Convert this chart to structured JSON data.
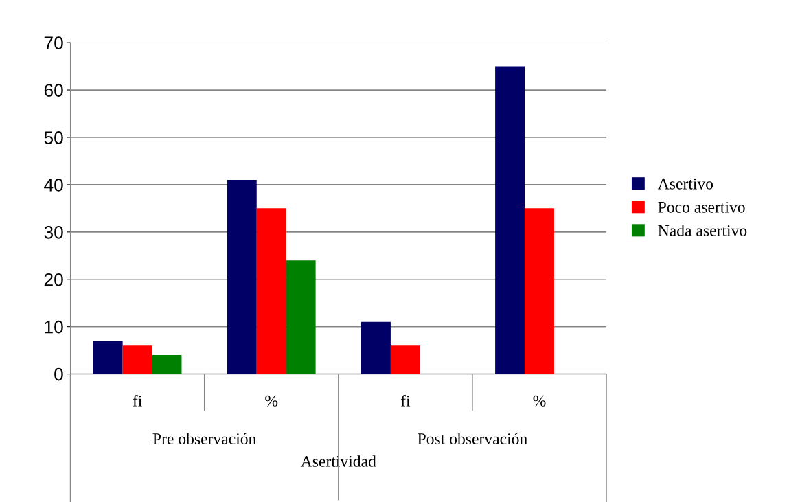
{
  "chart_data": {
    "type": "bar",
    "categories": [
      "fi",
      "%",
      "fi",
      "%"
    ],
    "xlabel": "Asertividad",
    "annotations": [
      "Pre observación",
      "Post observación"
    ],
    "series": [
      {
        "name": "Asertivo",
        "color": "#000066",
        "values": [
          7,
          41,
          11,
          65
        ]
      },
      {
        "name": "Poco asertivo",
        "color": "#ff0000",
        "values": [
          6,
          35,
          6,
          35
        ]
      },
      {
        "name": "Nada asertivo",
        "color": "#008000",
        "values": [
          4,
          24,
          0,
          0
        ]
      }
    ],
    "ylim": [
      0,
      70
    ],
    "yticks": [
      0,
      10,
      20,
      30,
      40,
      50,
      60,
      70
    ],
    "grid": "y",
    "legend": "right"
  }
}
